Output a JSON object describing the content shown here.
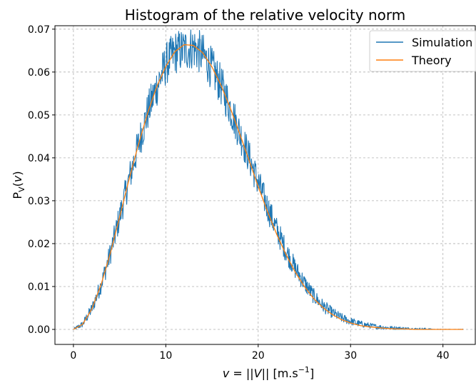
{
  "chart_data": {
    "type": "line",
    "title": "Histogram of the relative velocity norm",
    "xlabel": {
      "var": "v",
      "eq": " = ||",
      "vec": "V",
      "after": "|| [m.s",
      "exp": "−1",
      "close": "]"
    },
    "ylabel": {
      "main": "P",
      "sub": "V",
      "paren_open": "(",
      "var": "v",
      "paren_close": ")"
    },
    "xlim": [
      -2.0,
      43.5
    ],
    "ylim": [
      -0.0035,
      0.0708
    ],
    "x_ticks": [
      0,
      10,
      20,
      30,
      40
    ],
    "x_tick_labels": [
      "0",
      "10",
      "20",
      "30",
      "40"
    ],
    "y_ticks": [
      0.0,
      0.01,
      0.02,
      0.03,
      0.04,
      0.05,
      0.06,
      0.07
    ],
    "y_tick_labels": [
      "0.00",
      "0.01",
      "0.02",
      "0.03",
      "0.04",
      "0.05",
      "0.06",
      "0.07"
    ],
    "grid": true,
    "legend_position": "top-right",
    "series": [
      {
        "name": "Simulation",
        "color": "#1f77b4",
        "style": "noisy",
        "x": [
          0,
          1,
          2,
          3,
          4,
          5,
          6,
          7,
          8,
          9,
          10,
          11,
          12,
          13,
          14,
          15,
          16,
          17,
          18,
          19,
          20,
          21,
          22,
          23,
          24,
          25,
          26,
          27,
          28,
          29,
          30,
          31,
          32,
          33,
          34,
          35,
          36,
          37,
          38,
          39,
          40,
          41,
          42
        ],
        "values": [
          0.0,
          0.0012,
          0.0048,
          0.0105,
          0.0178,
          0.0262,
          0.0348,
          0.0428,
          0.0504,
          0.0565,
          0.0618,
          0.0646,
          0.0652,
          0.0658,
          0.064,
          0.0608,
          0.0568,
          0.0515,
          0.0458,
          0.0402,
          0.0342,
          0.0285,
          0.0232,
          0.0184,
          0.0142,
          0.0108,
          0.0078,
          0.0055,
          0.0039,
          0.0027,
          0.0019,
          0.0013,
          0.0009,
          0.0006,
          0.0004,
          0.0003,
          0.0002,
          0.0001,
          0.0001,
          0.0,
          0.0,
          0.0,
          0.0
        ]
      },
      {
        "name": "Theory",
        "color": "#ff7f0e",
        "style": "smooth",
        "x": [
          0,
          1,
          2,
          3,
          4,
          5,
          6,
          7,
          8,
          9,
          10,
          11,
          12,
          13,
          14,
          15,
          16,
          17,
          18,
          19,
          20,
          21,
          22,
          23,
          24,
          25,
          26,
          27,
          28,
          29,
          30,
          31,
          32,
          33,
          34,
          35,
          36,
          37,
          38,
          39,
          40,
          41,
          42
        ],
        "values": [
          0.0,
          0.0012,
          0.0048,
          0.0105,
          0.0178,
          0.0262,
          0.0348,
          0.0428,
          0.0502,
          0.0565,
          0.0613,
          0.0648,
          0.0664,
          0.0662,
          0.0645,
          0.0612,
          0.0568,
          0.0515,
          0.0456,
          0.0395,
          0.0333,
          0.0275,
          0.0222,
          0.0175,
          0.0134,
          0.01,
          0.0072,
          0.0051,
          0.0035,
          0.0023,
          0.0015,
          0.0009,
          0.0006,
          0.0004,
          0.0002,
          0.0001,
          0.0001,
          0.0,
          0.0,
          0.0,
          0.0,
          0.0,
          0.0
        ]
      }
    ]
  }
}
